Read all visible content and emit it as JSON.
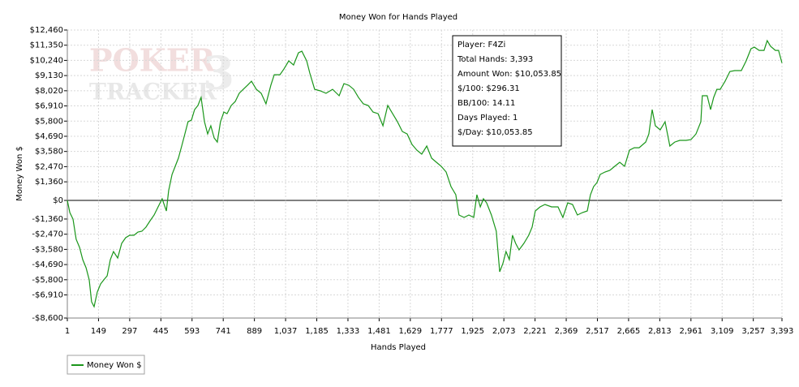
{
  "chart_data": {
    "type": "line",
    "title": "Money Won for Hands Played",
    "x_label": "Hands Played",
    "y_label": "Money Won $",
    "watermark": [
      "POKER",
      "TRACKER",
      "3"
    ],
    "info_box": [
      "Player: F4Zi",
      "Total Hands: 3,393",
      "Amount Won: $10,053.85",
      "$/100: $296.31",
      "BB/100: 14.11",
      "Days Played: 1",
      "$/Day: $10,053.85"
    ],
    "grid": true,
    "legend": "bottom-left",
    "xlim": [
      1,
      3393
    ],
    "ylim": [
      -8600,
      12460
    ],
    "xticks": [
      1,
      149,
      297,
      445,
      593,
      741,
      889,
      {
        "value": 1037,
        "label": "1,037"
      },
      {
        "value": 1185,
        "label": "1,185"
      },
      {
        "value": 1333,
        "label": "1,333"
      },
      {
        "value": 1481,
        "label": "1,481"
      },
      {
        "value": 1629,
        "label": "1,629"
      },
      {
        "value": 1777,
        "label": "1,777"
      },
      {
        "value": 1925,
        "label": "1,925"
      },
      {
        "value": 2073,
        "label": "2,073"
      },
      {
        "value": 2221,
        "label": "2,221"
      },
      {
        "value": 2369,
        "label": "2,369"
      },
      {
        "value": 2517,
        "label": "2,517"
      },
      {
        "value": 2665,
        "label": "2,665"
      },
      {
        "value": 2813,
        "label": "2,813"
      },
      {
        "value": 2961,
        "label": "2,961"
      },
      {
        "value": 3109,
        "label": "3,109"
      },
      {
        "value": 3257,
        "label": "3,257"
      },
      {
        "value": 3393,
        "label": "3,393"
      }
    ],
    "yticks": [
      {
        "value": 12460,
        "label": "$12,460"
      },
      {
        "value": 11350,
        "label": "$11,350"
      },
      {
        "value": 10240,
        "label": "$10,240"
      },
      {
        "value": 9130,
        "label": "$9,130"
      },
      {
        "value": 8020,
        "label": "$8,020"
      },
      {
        "value": 6910,
        "label": "$6,910"
      },
      {
        "value": 5800,
        "label": "$5,800"
      },
      {
        "value": 4690,
        "label": "$4,690"
      },
      {
        "value": 3580,
        "label": "$3,580"
      },
      {
        "value": 2470,
        "label": "$2,470"
      },
      {
        "value": 1360,
        "label": "$1,360"
      },
      {
        "value": 0,
        "label": "$0"
      },
      {
        "value": -1360,
        "label": "-$1,360"
      },
      {
        "value": -2470,
        "label": "-$2,470"
      },
      {
        "value": -3580,
        "label": "-$3,580"
      },
      {
        "value": -4690,
        "label": "-$4,690"
      },
      {
        "value": -5800,
        "label": "-$5,800"
      },
      {
        "value": -6910,
        "label": "-$6,910"
      },
      {
        "value": -8600,
        "label": "-$8,600"
      }
    ],
    "x": [
      1,
      13,
      28,
      43,
      59,
      74,
      90,
      105,
      116,
      128,
      143,
      159,
      174,
      190,
      205,
      220,
      240,
      259,
      278,
      297,
      317,
      336,
      355,
      374,
      394,
      413,
      432,
      451,
      471,
      482,
      498,
      513,
      528,
      544,
      559,
      574,
      590,
      605,
      621,
      636,
      652,
      667,
      682,
      698,
      713,
      728,
      744,
      759,
      779,
      798,
      817,
      836,
      856,
      875,
      898,
      921,
      944,
      967,
      983,
      1010,
      1029,
      1052,
      1075,
      1098,
      1114,
      1137,
      1152,
      1175,
      1202,
      1229,
      1260,
      1291,
      1314,
      1337,
      1360,
      1383,
      1406,
      1429,
      1452,
      1476,
      1499,
      1522,
      1545,
      1568,
      1591,
      1614,
      1637,
      1660,
      1683,
      1707,
      1730,
      1753,
      1776,
      1799,
      1822,
      1845,
      1860,
      1884,
      1907,
      1930,
      1945,
      1961,
      1976,
      1991,
      2014,
      2037,
      2053,
      2068,
      2083,
      2099,
      2114,
      2129,
      2145,
      2168,
      2191,
      2207,
      2222,
      2245,
      2268,
      2299,
      2330,
      2353,
      2376,
      2399,
      2422,
      2446,
      2469,
      2484,
      2499,
      2515,
      2530,
      2553,
      2576,
      2599,
      2623,
      2646,
      2669,
      2692,
      2715,
      2746,
      2761,
      2777,
      2792,
      2815,
      2838,
      2861,
      2884,
      2908,
      2938,
      2961,
      2985,
      3008,
      3015,
      3038,
      3054,
      3069,
      3084,
      3100,
      3123,
      3146,
      3169,
      3200,
      3223,
      3246,
      3262,
      3285,
      3308,
      3323,
      3339,
      3362,
      3377,
      3393
    ],
    "series": [
      {
        "name": "Money Won $",
        "color": "#1a961a",
        "values": [
          0,
          -890,
          -1364,
          -2847,
          -3440,
          -4330,
          -4923,
          -5813,
          -7414,
          -7770,
          -6703,
          -6109,
          -5813,
          -5516,
          -4330,
          -3736,
          -4211,
          -3143,
          -2728,
          -2550,
          -2550,
          -2313,
          -2254,
          -1957,
          -1483,
          -1068,
          -474,
          119,
          -771,
          712,
          1898,
          2491,
          3084,
          3974,
          4863,
          5753,
          5872,
          6643,
          6940,
          7533,
          5753,
          4863,
          5457,
          4567,
          4270,
          5753,
          6465,
          6346,
          6940,
          7236,
          7830,
          8126,
          8423,
          8719,
          8126,
          7830,
          7059,
          8423,
          9194,
          9194,
          9609,
          10202,
          9906,
          10795,
          10914,
          10202,
          9313,
          8126,
          8008,
          7830,
          8126,
          7652,
          8541,
          8423,
          8126,
          7533,
          7059,
          6940,
          6465,
          6346,
          5457,
          6940,
          6346,
          5753,
          5041,
          4863,
          4093,
          3677,
          3381,
          3974,
          3084,
          2788,
          2491,
          2076,
          1008,
          415,
          -1068,
          -1246,
          -1068,
          -1246,
          415,
          -474,
          119,
          -178,
          -1068,
          -2254,
          -5220,
          -4626,
          -3736,
          -4330,
          -2550,
          -3143,
          -3618,
          -3143,
          -2550,
          -1957,
          -771,
          -474,
          -297,
          -474,
          -474,
          -1246,
          -178,
          -297,
          -1068,
          -890,
          -771,
          415,
          1008,
          1305,
          1898,
          2076,
          2195,
          2491,
          2788,
          2491,
          3677,
          3855,
          3855,
          4270,
          4863,
          6643,
          5457,
          5160,
          5753,
          3974,
          4270,
          4389,
          4389,
          4448,
          4863,
          5753,
          7652,
          7652,
          6643,
          7533,
          8126,
          8126,
          8719,
          9431,
          9491,
          9491,
          10202,
          11092,
          11211,
          10973,
          10973,
          11685,
          11270,
          10973,
          10973,
          10054
        ]
      }
    ]
  }
}
